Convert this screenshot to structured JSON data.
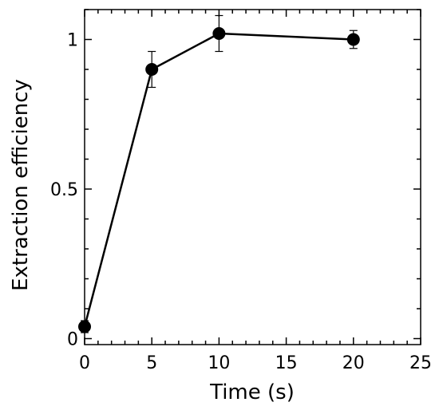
{
  "chart_data": {
    "type": "line",
    "xlabel": "Time (s)",
    "ylabel": "Extraction efficiency",
    "xlim": [
      0,
      25
    ],
    "ylim": [
      -0.02,
      1.1
    ],
    "x_ticks": [
      0,
      5,
      10,
      15,
      20,
      25
    ],
    "x_tick_labels": [
      "0",
      "5",
      "10",
      "15",
      "20",
      "25"
    ],
    "y_ticks": [
      0,
      0.5,
      1
    ],
    "y_tick_labels": [
      "0",
      "0.5",
      "1"
    ],
    "grid": false,
    "series": [
      {
        "color": "#000000",
        "marker": "filled-circle",
        "points": [
          {
            "x": 0,
            "y": 0.04,
            "err": 0.02
          },
          {
            "x": 5,
            "y": 0.9,
            "err": 0.06
          },
          {
            "x": 10,
            "y": 1.02,
            "err": 0.06
          },
          {
            "x": 20,
            "y": 1.0,
            "err": 0.03
          }
        ]
      }
    ]
  }
}
